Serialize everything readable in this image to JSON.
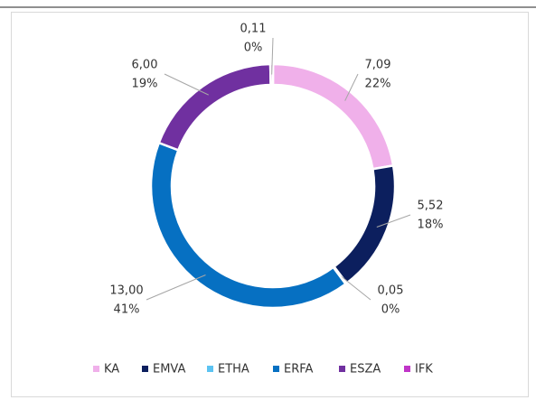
{
  "chart_data": {
    "type": "donut",
    "categories": [
      "KA",
      "EMVA",
      "ETHA",
      "ERFA",
      "ESZA",
      "IFK"
    ],
    "values": [
      7.09,
      5.52,
      0.05,
      13.0,
      6.0,
      0.11
    ],
    "value_labels": [
      "7,09",
      "5,52",
      "0,05",
      "13,00",
      "6,00",
      "0,11"
    ],
    "percent_labels": [
      "22%",
      "18%",
      "0%",
      "41%",
      "19%",
      "0%"
    ],
    "colors": [
      "#f0b0ea",
      "#0c1f5e",
      "#5cc3f2",
      "#0670c2",
      "#7030a0",
      "#c035c8"
    ],
    "legend": "bottom"
  }
}
